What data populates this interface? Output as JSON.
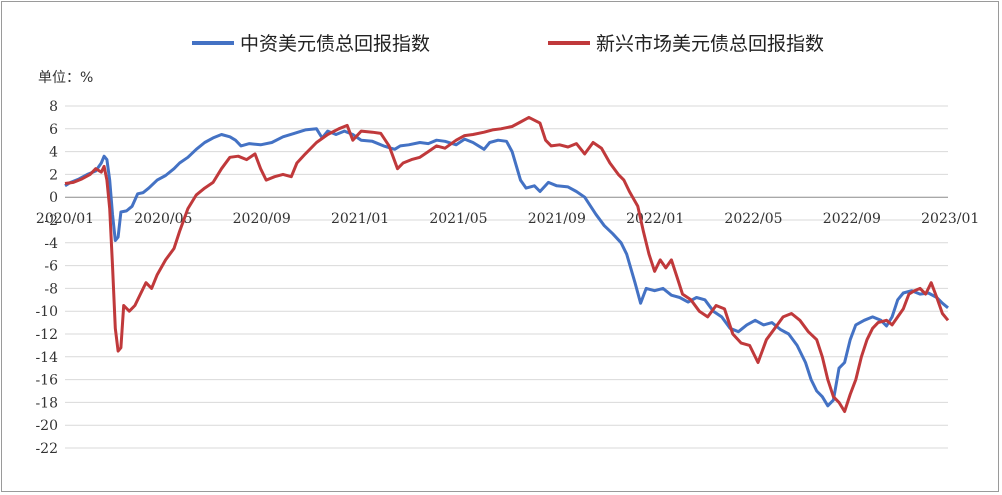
{
  "chart_data": {
    "type": "line",
    "title": "",
    "unit_label": "单位：%",
    "ylim": [
      -22,
      8
    ],
    "y_ticks": [
      8,
      6,
      4,
      2,
      0,
      -2,
      -4,
      -6,
      -8,
      -10,
      -12,
      -14,
      -16,
      -18,
      -20,
      -22
    ],
    "x_tick_labels": [
      "2020/01",
      "2020/05",
      "2020/09",
      "2021/01",
      "2021/05",
      "2021/09",
      "2022/01",
      "2022/05",
      "2022/09",
      "2023/01"
    ],
    "grid": true,
    "legend_position": "top",
    "colors": {
      "series_1": "#4472C4",
      "series_2": "#C0393B",
      "grid": "#d9d9d9",
      "axis": "#8c8c8c"
    },
    "series": [
      {
        "name": "中资美元债总回报指数",
        "points": [
          [
            0,
            1.0
          ],
          [
            0.2,
            1.3
          ],
          [
            0.5,
            1.6
          ],
          [
            0.8,
            2.0
          ],
          [
            1.1,
            2.3
          ],
          [
            1.3,
            3.0
          ],
          [
            1.4,
            3.6
          ],
          [
            1.5,
            3.3
          ],
          [
            1.6,
            1.5
          ],
          [
            1.7,
            -1.5
          ],
          [
            1.8,
            -3.8
          ],
          [
            1.9,
            -3.5
          ],
          [
            2.0,
            -1.3
          ],
          [
            2.2,
            -1.2
          ],
          [
            2.4,
            -0.8
          ],
          [
            2.6,
            0.3
          ],
          [
            2.8,
            0.4
          ],
          [
            3.0,
            0.8
          ],
          [
            3.3,
            1.5
          ],
          [
            3.6,
            1.9
          ],
          [
            3.9,
            2.5
          ],
          [
            4.1,
            3.0
          ],
          [
            4.4,
            3.5
          ],
          [
            4.7,
            4.2
          ],
          [
            5.0,
            4.8
          ],
          [
            5.3,
            5.2
          ],
          [
            5.6,
            5.5
          ],
          [
            5.9,
            5.3
          ],
          [
            6.1,
            5.0
          ],
          [
            6.3,
            4.5
          ],
          [
            6.6,
            4.7
          ],
          [
            7.0,
            4.6
          ],
          [
            7.4,
            4.8
          ],
          [
            7.8,
            5.3
          ],
          [
            8.2,
            5.6
          ],
          [
            8.6,
            5.9
          ],
          [
            9.0,
            6.0
          ],
          [
            9.2,
            5.2
          ],
          [
            9.4,
            5.8
          ],
          [
            9.7,
            5.5
          ],
          [
            10.0,
            5.8
          ],
          [
            10.3,
            5.5
          ],
          [
            10.6,
            5.0
          ],
          [
            11.0,
            4.9
          ],
          [
            11.4,
            4.5
          ],
          [
            11.8,
            4.2
          ],
          [
            12.0,
            4.5
          ],
          [
            12.3,
            4.6
          ],
          [
            12.7,
            4.8
          ],
          [
            13.0,
            4.7
          ],
          [
            13.3,
            5.0
          ],
          [
            13.6,
            4.9
          ],
          [
            14.0,
            4.6
          ],
          [
            14.3,
            5.1
          ],
          [
            14.6,
            4.8
          ],
          [
            15.0,
            4.2
          ],
          [
            15.2,
            4.8
          ],
          [
            15.5,
            5.0
          ],
          [
            15.8,
            4.9
          ],
          [
            16.0,
            4.0
          ],
          [
            16.3,
            1.5
          ],
          [
            16.5,
            0.8
          ],
          [
            16.8,
            1.0
          ],
          [
            17.0,
            0.5
          ],
          [
            17.3,
            1.3
          ],
          [
            17.6,
            1.0
          ],
          [
            18.0,
            0.9
          ],
          [
            18.3,
            0.5
          ],
          [
            18.6,
            0.0
          ],
          [
            19.0,
            -1.5
          ],
          [
            19.3,
            -2.5
          ],
          [
            19.6,
            -3.2
          ],
          [
            19.9,
            -4.0
          ],
          [
            20.1,
            -5.0
          ],
          [
            20.4,
            -7.5
          ],
          [
            20.6,
            -9.3
          ],
          [
            20.8,
            -8.0
          ],
          [
            21.1,
            -8.2
          ],
          [
            21.4,
            -8.0
          ],
          [
            21.7,
            -8.6
          ],
          [
            22.0,
            -8.8
          ],
          [
            22.3,
            -9.2
          ],
          [
            22.6,
            -8.8
          ],
          [
            22.9,
            -9.0
          ],
          [
            23.2,
            -10.0
          ],
          [
            23.5,
            -10.5
          ],
          [
            23.8,
            -11.5
          ],
          [
            24.1,
            -11.8
          ],
          [
            24.4,
            -11.2
          ],
          [
            24.7,
            -10.8
          ],
          [
            25.0,
            -11.2
          ],
          [
            25.3,
            -11.0
          ],
          [
            25.6,
            -11.6
          ],
          [
            25.9,
            -12.0
          ],
          [
            26.2,
            -13.0
          ],
          [
            26.5,
            -14.5
          ],
          [
            26.7,
            -16.0
          ],
          [
            26.9,
            -17.0
          ],
          [
            27.1,
            -17.5
          ],
          [
            27.3,
            -18.3
          ],
          [
            27.5,
            -17.8
          ],
          [
            27.7,
            -15.0
          ],
          [
            27.9,
            -14.5
          ],
          [
            28.1,
            -12.5
          ],
          [
            28.3,
            -11.2
          ],
          [
            28.6,
            -10.8
          ],
          [
            28.9,
            -10.5
          ],
          [
            29.2,
            -10.8
          ],
          [
            29.4,
            -11.3
          ],
          [
            29.6,
            -10.5
          ],
          [
            29.8,
            -9.0
          ],
          [
            30.0,
            -8.4
          ],
          [
            30.3,
            -8.2
          ],
          [
            30.6,
            -8.5
          ],
          [
            30.9,
            -8.4
          ],
          [
            31.2,
            -8.8
          ],
          [
            31.4,
            -9.3
          ],
          [
            31.6,
            -9.7
          ]
        ]
      },
      {
        "name": "新兴市场美元债总回报指数",
        "points": [
          [
            0,
            1.2
          ],
          [
            0.3,
            1.3
          ],
          [
            0.6,
            1.6
          ],
          [
            0.9,
            2.0
          ],
          [
            1.1,
            2.5
          ],
          [
            1.3,
            2.2
          ],
          [
            1.4,
            2.7
          ],
          [
            1.5,
            1.5
          ],
          [
            1.6,
            -1.0
          ],
          [
            1.7,
            -6.0
          ],
          [
            1.8,
            -11.5
          ],
          [
            1.9,
            -13.5
          ],
          [
            2.0,
            -13.2
          ],
          [
            2.1,
            -9.5
          ],
          [
            2.3,
            -10.0
          ],
          [
            2.5,
            -9.5
          ],
          [
            2.7,
            -8.5
          ],
          [
            2.9,
            -7.5
          ],
          [
            3.1,
            -8.0
          ],
          [
            3.3,
            -6.8
          ],
          [
            3.6,
            -5.5
          ],
          [
            3.9,
            -4.5
          ],
          [
            4.1,
            -3.0
          ],
          [
            4.4,
            -1.0
          ],
          [
            4.7,
            0.2
          ],
          [
            5.0,
            0.8
          ],
          [
            5.3,
            1.3
          ],
          [
            5.6,
            2.5
          ],
          [
            5.9,
            3.5
          ],
          [
            6.2,
            3.6
          ],
          [
            6.5,
            3.3
          ],
          [
            6.8,
            3.8
          ],
          [
            7.0,
            2.5
          ],
          [
            7.2,
            1.5
          ],
          [
            7.5,
            1.8
          ],
          [
            7.8,
            2.0
          ],
          [
            8.1,
            1.8
          ],
          [
            8.3,
            3.0
          ],
          [
            8.6,
            3.8
          ],
          [
            9.0,
            4.8
          ],
          [
            9.4,
            5.5
          ],
          [
            9.8,
            6.0
          ],
          [
            10.1,
            6.3
          ],
          [
            10.3,
            5.0
          ],
          [
            10.6,
            5.8
          ],
          [
            11.0,
            5.7
          ],
          [
            11.3,
            5.6
          ],
          [
            11.6,
            4.5
          ],
          [
            11.9,
            2.5
          ],
          [
            12.1,
            3.0
          ],
          [
            12.4,
            3.3
          ],
          [
            12.7,
            3.5
          ],
          [
            13.0,
            4.0
          ],
          [
            13.3,
            4.5
          ],
          [
            13.6,
            4.3
          ],
          [
            14.0,
            5.0
          ],
          [
            14.3,
            5.4
          ],
          [
            14.6,
            5.5
          ],
          [
            15.0,
            5.7
          ],
          [
            15.3,
            5.9
          ],
          [
            15.6,
            6.0
          ],
          [
            16.0,
            6.2
          ],
          [
            16.3,
            6.6
          ],
          [
            16.6,
            7.0
          ],
          [
            17.0,
            6.5
          ],
          [
            17.2,
            5.0
          ],
          [
            17.4,
            4.5
          ],
          [
            17.7,
            4.6
          ],
          [
            18.0,
            4.4
          ],
          [
            18.3,
            4.7
          ],
          [
            18.6,
            3.8
          ],
          [
            18.9,
            4.8
          ],
          [
            19.2,
            4.3
          ],
          [
            19.5,
            3.0
          ],
          [
            19.8,
            2.0
          ],
          [
            20.0,
            1.5
          ],
          [
            20.2,
            0.5
          ],
          [
            20.5,
            -0.8
          ],
          [
            20.7,
            -3.0
          ],
          [
            20.9,
            -5.0
          ],
          [
            21.1,
            -6.5
          ],
          [
            21.3,
            -5.5
          ],
          [
            21.5,
            -6.2
          ],
          [
            21.7,
            -5.5
          ],
          [
            21.9,
            -7.0
          ],
          [
            22.1,
            -8.5
          ],
          [
            22.4,
            -9.0
          ],
          [
            22.7,
            -10.0
          ],
          [
            23.0,
            -10.5
          ],
          [
            23.3,
            -9.5
          ],
          [
            23.6,
            -9.8
          ],
          [
            23.9,
            -12.0
          ],
          [
            24.2,
            -12.8
          ],
          [
            24.5,
            -13.0
          ],
          [
            24.8,
            -14.5
          ],
          [
            25.1,
            -12.5
          ],
          [
            25.4,
            -11.5
          ],
          [
            25.7,
            -10.5
          ],
          [
            26.0,
            -10.2
          ],
          [
            26.3,
            -10.8
          ],
          [
            26.6,
            -11.8
          ],
          [
            26.9,
            -12.5
          ],
          [
            27.1,
            -14.0
          ],
          [
            27.3,
            -16.0
          ],
          [
            27.5,
            -17.5
          ],
          [
            27.7,
            -18.0
          ],
          [
            27.9,
            -18.8
          ],
          [
            28.1,
            -17.3
          ],
          [
            28.3,
            -16.0
          ],
          [
            28.5,
            -14.0
          ],
          [
            28.7,
            -12.5
          ],
          [
            28.9,
            -11.5
          ],
          [
            29.1,
            -11.0
          ],
          [
            29.4,
            -10.8
          ],
          [
            29.6,
            -11.2
          ],
          [
            29.8,
            -10.5
          ],
          [
            30.0,
            -9.8
          ],
          [
            30.2,
            -8.5
          ],
          [
            30.4,
            -8.2
          ],
          [
            30.6,
            -8.0
          ],
          [
            30.8,
            -8.5
          ],
          [
            31.0,
            -7.5
          ],
          [
            31.2,
            -8.8
          ],
          [
            31.4,
            -10.2
          ],
          [
            31.6,
            -10.8
          ]
        ]
      }
    ]
  }
}
